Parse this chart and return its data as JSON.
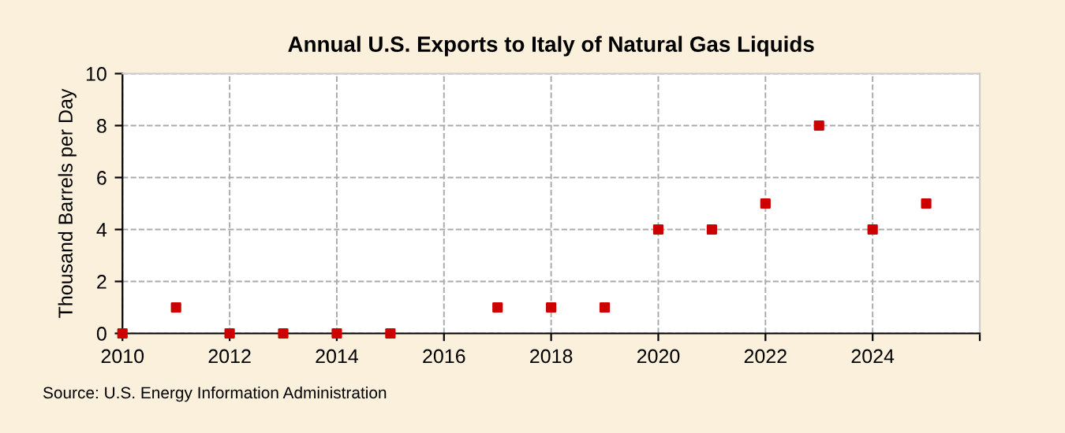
{
  "chart_data": {
    "type": "scatter",
    "title": "Annual U.S. Exports to Italy of Natural Gas Liquids",
    "ylabel": "Thousand Barrels per Day",
    "x": [
      2010,
      2011,
      2012,
      2013,
      2014,
      2015,
      2016,
      2017,
      2018,
      2019,
      2020,
      2021,
      2022,
      2023,
      2024,
      2025
    ],
    "values": [
      0,
      1,
      0,
      0,
      0,
      0,
      null,
      1,
      1,
      1,
      4,
      4,
      5,
      8,
      4,
      5
    ],
    "color": "#cc0000",
    "marker": "square",
    "xlim": [
      2010,
      2026
    ],
    "xticks": [
      2010,
      2012,
      2014,
      2016,
      2018,
      2020,
      2022,
      2024,
      {
        "value": 2026,
        "label": null
      }
    ],
    "ylim": [
      0,
      10
    ],
    "yticks": [
      0,
      2,
      4,
      6,
      8,
      10
    ],
    "grid": true,
    "annotations": [
      "Source: U.S. Energy Information Administration"
    ]
  }
}
